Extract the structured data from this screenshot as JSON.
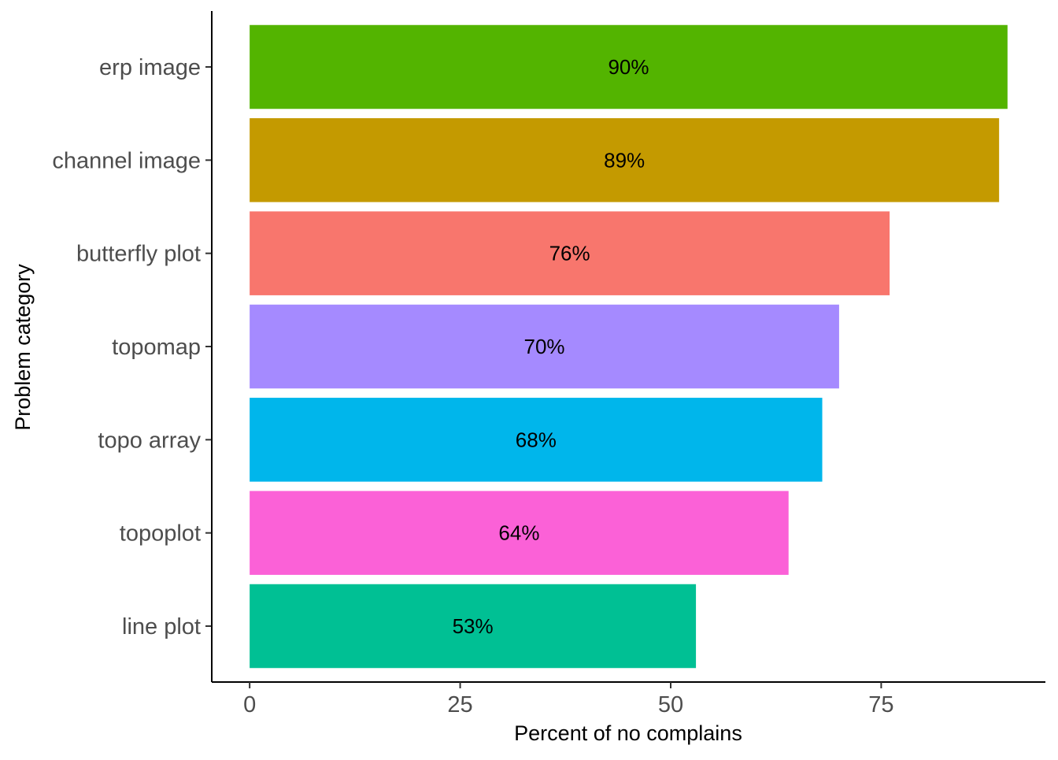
{
  "chart_data": {
    "type": "bar",
    "orientation": "horizontal",
    "categories": [
      "line plot",
      "topoplot",
      "topo array",
      "topomap",
      "butterfly plot",
      "channel image",
      "erp image"
    ],
    "values": [
      53,
      64,
      68,
      70,
      76,
      89,
      90
    ],
    "value_labels": [
      "53%",
      "64%",
      "68%",
      "70%",
      "76%",
      "89%",
      "90%"
    ],
    "colors": [
      "#00C094",
      "#FB61D7",
      "#00B6EB",
      "#A58AFF",
      "#F8766D",
      "#C49A00",
      "#53B400"
    ],
    "xlabel": "Percent of no complains",
    "ylabel": "Problem category",
    "xlim": [
      -4.5,
      94.5
    ],
    "xticks": [
      0,
      25,
      50,
      75
    ],
    "grid": false,
    "legend": "none"
  }
}
